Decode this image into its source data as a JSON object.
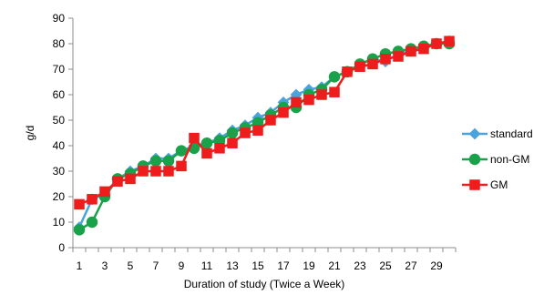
{
  "chart_data": {
    "type": "line",
    "title": "",
    "xlabel": "Duration of study (Twice a Week)",
    "ylabel": "g/d",
    "ylim": [
      0,
      90
    ],
    "yticks": [
      0,
      10,
      20,
      30,
      40,
      50,
      60,
      70,
      80,
      90
    ],
    "xticks": [
      1,
      3,
      5,
      7,
      9,
      11,
      13,
      15,
      17,
      19,
      21,
      23,
      25,
      27,
      29
    ],
    "x": [
      1,
      2,
      3,
      4,
      5,
      6,
      7,
      8,
      9,
      10,
      11,
      12,
      13,
      14,
      15,
      16,
      17,
      18,
      19,
      20,
      21,
      22,
      23,
      24,
      25,
      26,
      27,
      28,
      29,
      30
    ],
    "grid": false,
    "legend": "right",
    "series": [
      {
        "name": "standard",
        "color": "#4aa3df",
        "marker": "diamond",
        "values": [
          8,
          19,
          21,
          27,
          30,
          32,
          35,
          35,
          38,
          40,
          41,
          43,
          46,
          48,
          51,
          53,
          57,
          60,
          62,
          63,
          67,
          69,
          72,
          74,
          73,
          76,
          77,
          79,
          80,
          81
        ]
      },
      {
        "name": "non-GM",
        "color": "#19a24a",
        "marker": "circle",
        "values": [
          7,
          10,
          20,
          27,
          29,
          32,
          34,
          34,
          38,
          39,
          41,
          42,
          45,
          47,
          49,
          52,
          55,
          55,
          60,
          62,
          67,
          69,
          72,
          74,
          76,
          77,
          78,
          79,
          80,
          80
        ]
      },
      {
        "name": "GM",
        "color": "#ee1c1c",
        "marker": "square",
        "values": [
          17,
          19,
          22,
          26,
          27,
          30,
          30,
          30,
          32,
          43,
          37,
          39,
          41,
          45,
          46,
          50,
          53,
          57,
          58,
          60,
          61,
          69,
          71,
          72,
          74,
          75,
          77,
          78,
          80,
          81
        ]
      }
    ]
  }
}
